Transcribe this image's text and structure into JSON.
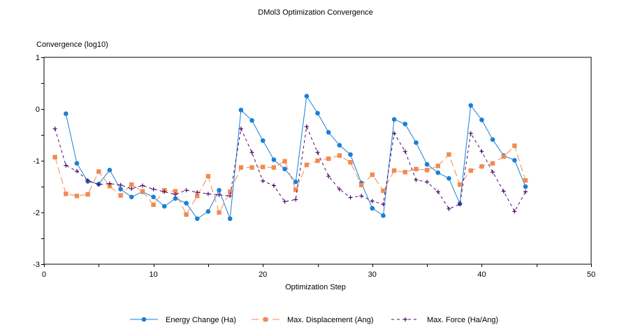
{
  "chart_data": {
    "type": "line",
    "title": "DMol3 Optimization Convergence",
    "xlabel": "Optimization Step",
    "ylabel": "Convergence (log10)",
    "xlim": [
      0,
      50
    ],
    "ylim": [
      -3,
      1
    ],
    "xticks": [
      0,
      10,
      20,
      30,
      40,
      50
    ],
    "yticks": [
      1,
      0,
      -1,
      -2,
      -3
    ],
    "grid": false,
    "legend_position": "bottom",
    "series": [
      {
        "name": "Energy Change (Ha)",
        "color": "#1a7fd6",
        "marker": "circle",
        "line_style": "solid",
        "x": [
          2,
          3,
          4,
          5,
          6,
          7,
          8,
          9,
          10,
          11,
          12,
          13,
          14,
          15,
          16,
          17,
          18,
          19,
          20,
          21,
          22,
          23,
          24,
          25,
          26,
          27,
          28,
          29,
          30,
          31,
          32,
          33,
          34,
          35,
          36,
          37,
          38,
          39,
          40,
          41,
          42,
          43,
          44
        ],
        "values": [
          -0.09,
          -1.05,
          -1.4,
          -1.45,
          -1.18,
          -1.55,
          -1.7,
          -1.6,
          -1.7,
          -1.88,
          -1.73,
          -1.82,
          -2.12,
          -1.98,
          -1.57,
          -2.12,
          -0.02,
          -0.22,
          -0.61,
          -0.98,
          -1.16,
          -1.41,
          0.25,
          -0.08,
          -0.45,
          -0.7,
          -0.88,
          -1.43,
          -1.92,
          -2.06,
          -0.2,
          -0.29,
          -0.65,
          -1.07,
          -1.23,
          -1.34,
          -1.83,
          0.07,
          -0.21,
          -0.59,
          -0.9,
          -0.99,
          -1.5
        ]
      },
      {
        "name": "Max. Displacement (Ang)",
        "color": "#f28a52",
        "marker": "square",
        "line_style": "dashed",
        "x": [
          1,
          2,
          3,
          4,
          5,
          6,
          7,
          8,
          9,
          10,
          11,
          12,
          13,
          14,
          15,
          16,
          17,
          18,
          19,
          20,
          21,
          22,
          23,
          24,
          25,
          26,
          27,
          28,
          29,
          30,
          31,
          32,
          33,
          34,
          35,
          36,
          37,
          38,
          39,
          40,
          41,
          42,
          43,
          44
        ],
        "values": [
          -0.93,
          -1.64,
          -1.68,
          -1.65,
          -1.21,
          -1.49,
          -1.67,
          -1.46,
          -1.59,
          -1.85,
          -1.57,
          -1.59,
          -2.04,
          -1.68,
          -1.3,
          -2.0,
          -1.6,
          -1.13,
          -1.13,
          -1.12,
          -1.13,
          -1.01,
          -1.56,
          -1.08,
          -1.0,
          -0.96,
          -0.9,
          -1.03,
          -1.47,
          -1.27,
          -1.58,
          -1.19,
          -1.22,
          -1.16,
          -1.18,
          -1.1,
          -0.88,
          -1.46,
          -1.19,
          -1.11,
          -1.05,
          -0.92,
          -0.71,
          -1.38
        ]
      },
      {
        "name": "Max. Force (Ha/Ang)",
        "color": "#4b0a6b",
        "marker": "plus",
        "line_style": "dashed",
        "x": [
          1,
          2,
          3,
          4,
          5,
          6,
          7,
          8,
          9,
          10,
          11,
          12,
          13,
          14,
          15,
          16,
          17,
          18,
          19,
          20,
          21,
          22,
          23,
          24,
          25,
          26,
          27,
          28,
          29,
          30,
          31,
          32,
          33,
          34,
          35,
          36,
          37,
          38,
          39,
          40,
          41,
          42,
          43,
          44
        ],
        "values": [
          -0.38,
          -1.09,
          -1.2,
          -1.38,
          -1.46,
          -1.44,
          -1.47,
          -1.54,
          -1.48,
          -1.55,
          -1.6,
          -1.65,
          -1.57,
          -1.61,
          -1.64,
          -1.66,
          -1.68,
          -0.38,
          -0.84,
          -1.39,
          -1.48,
          -1.79,
          -1.75,
          -0.34,
          -0.84,
          -1.3,
          -1.55,
          -1.71,
          -1.68,
          -1.78,
          -1.84,
          -0.47,
          -0.82,
          -1.37,
          -1.41,
          -1.6,
          -1.93,
          -1.84,
          -0.47,
          -0.82,
          -1.22,
          -1.59,
          -1.98,
          -1.6
        ]
      }
    ]
  }
}
